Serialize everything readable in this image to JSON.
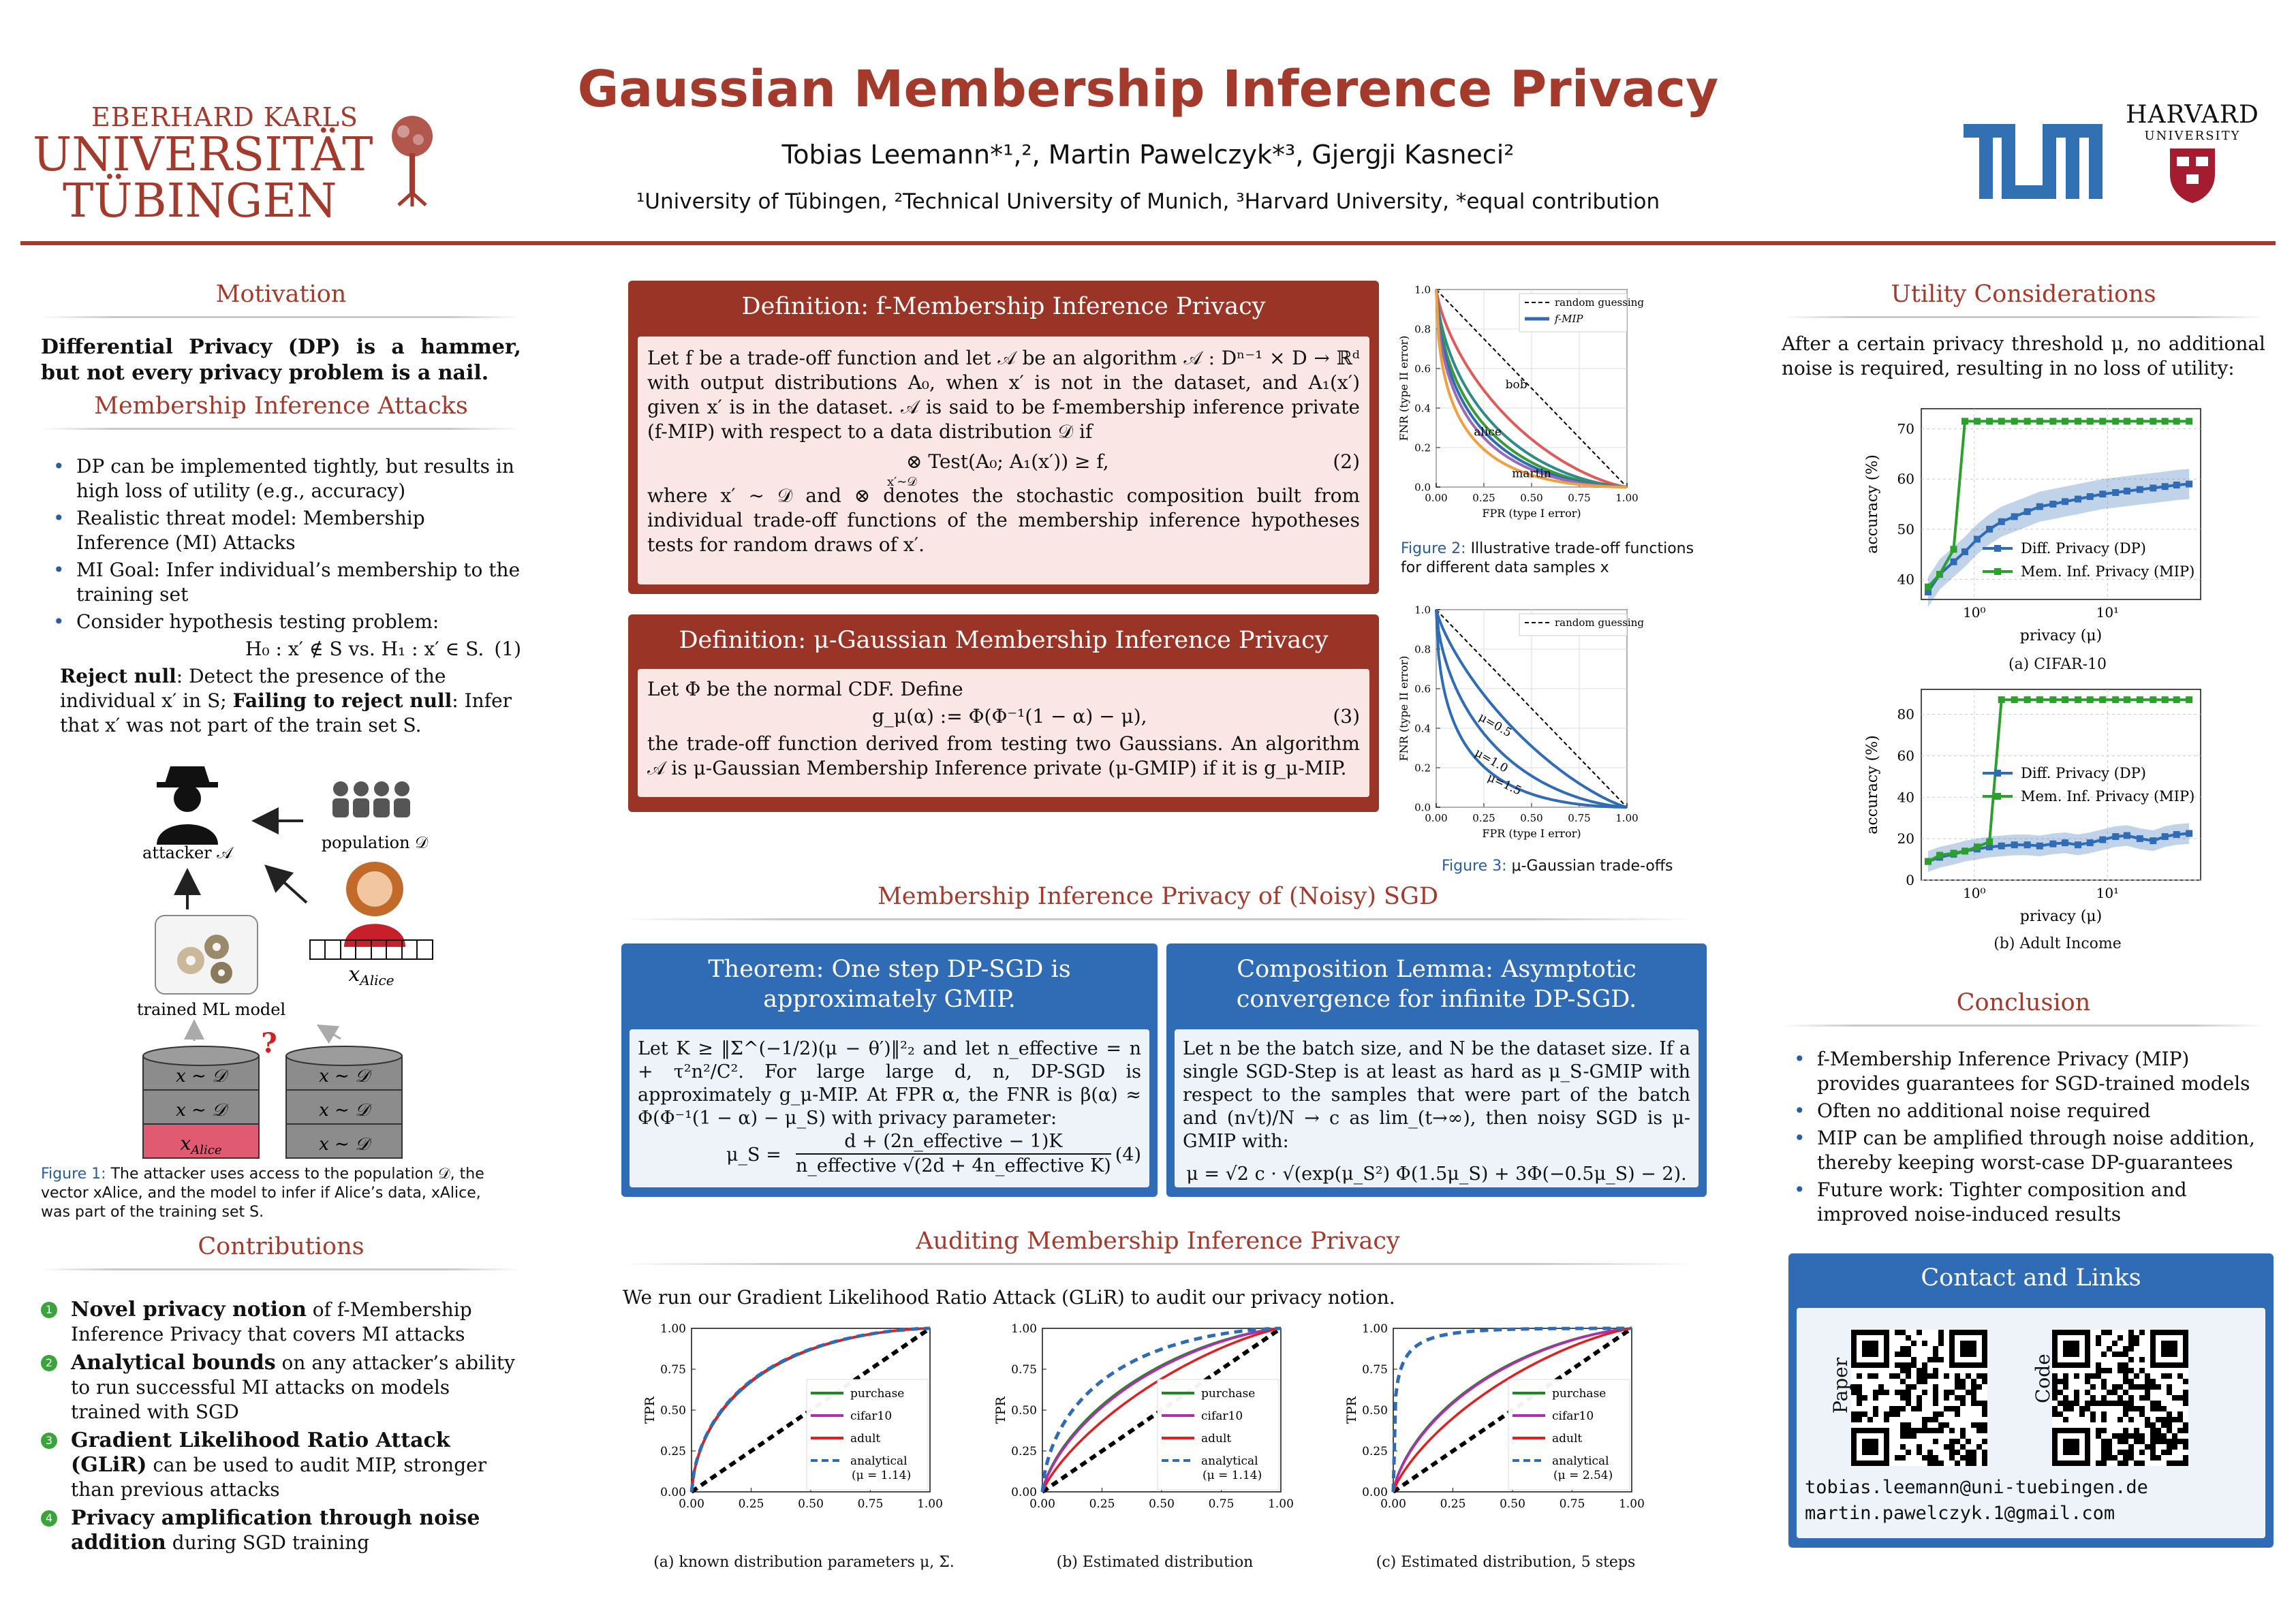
{
  "header": {
    "title": "Gaussian Membership Inference Privacy",
    "authors": "Tobias Leemann*¹,², Martin Pawelczyk*³, Gjergji Kasneci²",
    "affiliations": "¹University of Tübingen, ²Technical University of Munich, ³Harvard University, *equal contribution",
    "logo_tuebingen": [
      "EBERHARD KARLS",
      "UNIVERSITÄT",
      "TÜBINGEN"
    ],
    "logo_harvard": [
      "HARVARD",
      "UNIVERSITY"
    ],
    "logo_tum": "TUM"
  },
  "colors": {
    "accent": "#a33a2c",
    "blue": "#2f6cb5",
    "green": "#3aa43a"
  },
  "motivation": {
    "title": "Motivation",
    "text": "Differential Privacy (DP) is a hammer, but not every privacy problem is a nail."
  },
  "mia": {
    "title": "Membership Inference Attacks",
    "bullets": [
      "DP can be implemented tightly, but results in high loss of utility (e.g., accuracy)",
      "Realistic threat model: Membership Inference (MI) Attacks",
      "MI Goal: Infer individual’s membership to the training set",
      "Consider hypothesis testing problem:"
    ],
    "hypothesis": "H₀ : x′ ∉ S vs. H₁ : x′ ∈ S.",
    "eq_num": "(1)",
    "reject_bold": "Reject null",
    "reject_text": ": Detect the presence of the individual x′ in S; ",
    "fail_bold": "Failing to reject null",
    "fail_text": ": Infer that x′ was not part of the train set S."
  },
  "fig1": {
    "attacker": "attacker 𝒜",
    "population": "population 𝒟",
    "model": "trained ML model",
    "x_alice": "x",
    "x_alice_sub": "Alice",
    "db_row": "x ∼ 𝒟",
    "db_alice": "x",
    "question": "?",
    "caption_label": "Figure 1:",
    "caption": " The attacker uses access to the population 𝒟, the vector xAlice, and the model to infer if Alice’s data, xAlice, was part of the training set S."
  },
  "contributions": {
    "title": "Contributions",
    "items": [
      {
        "num": "1",
        "bold": "Novel privacy notion",
        "text": " of f-Membership Inference Privacy that covers MI attacks"
      },
      {
        "num": "2",
        "bold": "Analytical bounds",
        "text": " on any attacker’s ability to run successful MI attacks on models trained with SGD"
      },
      {
        "num": "3",
        "bold": "Gradient Likelihood Ratio Attack (GLiR)",
        "text": " can be used to audit MIP, stronger than previous attacks"
      },
      {
        "num": "4",
        "bold": "Privacy amplification through noise addition",
        "text": " during SGD training"
      }
    ]
  },
  "def1": {
    "title": "Definition: f-Membership Inference Privacy",
    "text1": "Let f be a trade-off function and let 𝒜 be an algorithm 𝒜 : Dⁿ⁻¹ × D → ℝᵈ with output distributions A₀, when x′ is not in the dataset, and A₁(x′) given x′ is in the dataset. 𝒜 is said to be f-membership inference private (f-MIP) with respect to a data distribution 𝒟 if",
    "equation": "⊗ Test(A₀; A₁(x′)) ≥ f,",
    "equation_sub": "x′∼𝒟",
    "eq_num": "(2)",
    "text2": "where x′ ∼ 𝒟 and ⊗ denotes the stochastic composition built from individual trade-off functions of the membership inference hypotheses tests for random draws of x′."
  },
  "def2": {
    "title": "Definition: μ-Gaussian Membership Inference Privacy",
    "text1": "Let Φ be the normal CDF. Define",
    "equation": "g_μ(α) := Φ(Φ⁻¹(1 − α) − μ),",
    "eq_num": "(3)",
    "text2": "the trade-off function derived from testing two Gaussians. An algorithm 𝒜 is μ-Gaussian Membership Inference private (μ-GMIP) if it is g_μ-MIP."
  },
  "sgd": {
    "title": "Membership Inference Privacy of (Noisy) SGD"
  },
  "theorem": {
    "title": "Theorem: One step DP-SGD is approximately GMIP.",
    "text1": "Let K ≥ ‖Σ^(−1/2)(μ − θ′)‖²₂ and let n_effective = n + τ²n²/C². For large large d, n, DP-SGD is approximately g_μ-MIP. At FPR α, the FNR is β(α) ≈ Φ(Φ⁻¹(1 − α) − μ_S) with privacy parameter:",
    "equation_lhs": "μ_S =",
    "equation_num": "d + (2n_effective − 1)K",
    "equation_den": "n_effective √(2d + 4n_effective K)",
    "eq_num": "(4)"
  },
  "lemma": {
    "title": "Composition Lemma: Asymptotic convergence for infinite DP-SGD.",
    "text1": "Let n be the batch size, and N be the dataset size. If a single SGD-Step is at least as hard as μ_S-GMIP with respect to the samples that were part of the batch and (n√t)/N → c as lim_(t→∞), then noisy SGD is μ-GMIP with:",
    "equation": "μ = √2 c · √(exp(μ_S²) Φ(1.5μ_S) + 3Φ(−0.5μ_S) − 2)."
  },
  "audit": {
    "title": "Auditing Membership Inference Privacy",
    "text": "We run our Gradient Likelihood Ratio Attack (GLiR) to audit our privacy notion."
  },
  "utility": {
    "title": "Utility Considerations",
    "text": "After a certain privacy threshold μ, no additional noise is required, resulting in no loss of utility:"
  },
  "conclusion": {
    "title": "Conclusion",
    "bullets": [
      "f-Membership Inference Privacy (MIP) provides guarantees for SGD-trained models",
      "Often no additional noise required",
      "MIP can be amplified through noise addition, thereby keeping worst-case DP-guarantees",
      "Future work: Tighter composition and improved noise-induced results"
    ]
  },
  "contact": {
    "title": "Contact and Links",
    "qr_labels": [
      "Paper",
      "Code"
    ],
    "emails": [
      "tobias.leemann@uni-tuebingen.de",
      "martin.pawelczyk.1@gmail.com"
    ]
  },
  "chart_data": [
    {
      "id": "fig2",
      "type": "line",
      "caption_label": "Figure 2:",
      "caption": " Illustrative trade-off functions for different data samples x",
      "xlabel": "FPR (type I error)",
      "ylabel": "FNR (type II error)",
      "xlim": [
        0,
        1
      ],
      "ylim": [
        0,
        1
      ],
      "xticks": [
        "0.00",
        "0.25",
        "0.50",
        "0.75",
        "1.00"
      ],
      "yticks": [
        "0.0",
        "0.2",
        "0.4",
        "0.6",
        "0.8",
        "1.0"
      ],
      "legend": [
        "random guessing",
        "f-MIP"
      ],
      "legend_position": "top-right",
      "annotations": [
        "bob",
        "alice",
        "martin"
      ],
      "series": [
        {
          "name": "random guessing",
          "color": "#000000",
          "dashed": true,
          "mu": 0
        },
        {
          "color": "#e05a5a",
          "mu": 0.7
        },
        {
          "color": "#2f8a8a",
          "mu": 1.0
        },
        {
          "color": "#3a9a3a",
          "mu": 1.15
        },
        {
          "color": "#2f6cb5",
          "mu": 1.25
        },
        {
          "color": "#9a6ab5",
          "mu": 1.35
        },
        {
          "color": "#f0a040",
          "mu": 1.55
        }
      ],
      "grid": true
    },
    {
      "id": "fig3",
      "type": "line",
      "caption_label": "Figure 3:",
      "caption": " μ-Gaussian trade-offs",
      "xlabel": "FPR (type I error)",
      "ylabel": "FNR (type II error)",
      "xlim": [
        0,
        1
      ],
      "ylim": [
        0,
        1
      ],
      "xticks": [
        "0.00",
        "0.25",
        "0.50",
        "0.75",
        "1.00"
      ],
      "yticks": [
        "0.0",
        "0.2",
        "0.4",
        "0.6",
        "0.8",
        "1.0"
      ],
      "legend": [
        "random guessing"
      ],
      "legend_position": "top-right",
      "annotations": [
        "μ=0.5",
        "μ=1.0",
        "μ=1.5"
      ],
      "series": [
        {
          "name": "random guessing",
          "color": "#000000",
          "dashed": true,
          "mu": 0
        },
        {
          "name": "μ=0.5",
          "color": "#2f6cb5",
          "mu": 0.5
        },
        {
          "name": "μ=1.0",
          "color": "#2f6cb5",
          "mu": 1.0
        },
        {
          "name": "μ=1.5",
          "color": "#2f6cb5",
          "mu": 1.5
        }
      ],
      "grid": true
    },
    {
      "id": "roc_a",
      "type": "line",
      "caption": "(a) known distribution parameters μ, Σ.",
      "xlabel": "FPR",
      "ylabel": "TPR",
      "xlim": [
        0,
        1
      ],
      "ylim": [
        0,
        1
      ],
      "xticks": [
        "0.00",
        "0.25",
        "0.50",
        "0.75",
        "1.00"
      ],
      "yticks": [
        "0.00",
        "0.25",
        "0.50",
        "0.75",
        "1.00"
      ],
      "legend": [
        "purchase",
        "cifar10",
        "adult",
        "analytical",
        "(μ = 1.14)"
      ],
      "legend_position": "bottom-right",
      "series": [
        {
          "name": "purchase",
          "color": "#1a8a1a",
          "mu": 1.12
        },
        {
          "name": "cifar10",
          "color": "#b52ab5",
          "mu": 1.13
        },
        {
          "name": "adult",
          "color": "#e02020",
          "mu": 1.14
        },
        {
          "name": "analytical",
          "color": "#2f6cb5",
          "dashed": true,
          "mu": 1.14
        },
        {
          "name": "random",
          "color": "#000000",
          "dashed": true,
          "mu": 0
        }
      ]
    },
    {
      "id": "roc_b",
      "type": "line",
      "caption": "(b) Estimated distribution",
      "xlabel": "FPR",
      "ylabel": "TPR",
      "xlim": [
        0,
        1
      ],
      "ylim": [
        0,
        1
      ],
      "xticks": [
        "0.00",
        "0.25",
        "0.50",
        "0.75",
        "1.00"
      ],
      "yticks": [
        "0.00",
        "0.25",
        "0.50",
        "0.75",
        "1.00"
      ],
      "legend": [
        "purchase",
        "cifar10",
        "adult",
        "analytical",
        "(μ = 1.14)"
      ],
      "legend_position": "bottom-right",
      "series": [
        {
          "name": "purchase",
          "color": "#1a8a1a",
          "mu": 0.75
        },
        {
          "name": "cifar10",
          "color": "#b52ab5",
          "mu": 0.72
        },
        {
          "name": "adult",
          "color": "#e02020",
          "mu": 0.5
        },
        {
          "name": "analytical",
          "color": "#2f6cb5",
          "dashed": true,
          "mu": 1.14
        },
        {
          "name": "random",
          "color": "#000000",
          "dashed": true,
          "mu": 0
        }
      ]
    },
    {
      "id": "roc_c",
      "type": "line",
      "caption": "(c) Estimated distribution, 5 steps",
      "xlabel": "FPR",
      "ylabel": "TPR",
      "xlim": [
        0,
        1
      ],
      "ylim": [
        0,
        1
      ],
      "xticks": [
        "0.00",
        "0.25",
        "0.50",
        "0.75",
        "1.00"
      ],
      "yticks": [
        "0.00",
        "0.25",
        "0.50",
        "0.75",
        "1.00"
      ],
      "legend": [
        "purchase",
        "cifar10",
        "adult",
        "analytical",
        "(μ = 2.54)"
      ],
      "legend_position": "bottom-right",
      "series": [
        {
          "name": "purchase",
          "color": "#1a8a1a",
          "mu": 0.8
        },
        {
          "name": "cifar10",
          "color": "#b52ab5",
          "mu": 0.78
        },
        {
          "name": "adult",
          "color": "#e02020",
          "mu": 0.55
        },
        {
          "name": "analytical",
          "color": "#2f6cb5",
          "dashed": true,
          "mu": 2.54
        },
        {
          "name": "random",
          "color": "#000000",
          "dashed": true,
          "mu": 0
        }
      ]
    },
    {
      "id": "util_a",
      "type": "line",
      "caption": "(a) CIFAR-10",
      "xlabel": "privacy (μ)",
      "ylabel": "accuracy (%)",
      "xscale": "log",
      "xlim": [
        0.4,
        50
      ],
      "ylim": [
        36,
        74
      ],
      "xticks": [
        "10⁰",
        "10¹"
      ],
      "yticks": [
        40,
        50,
        60,
        70
      ],
      "legend": [
        "Diff. Privacy (DP)",
        "Mem. Inf. Privacy (MIP)"
      ],
      "legend_position": "lower-middle",
      "series": [
        {
          "name": "Diff. Privacy (DP)",
          "color": "#2f6cb5",
          "x": [
            0.45,
            0.55,
            0.7,
            0.85,
            1.05,
            1.3,
            1.6,
            2.0,
            2.5,
            3.1,
            3.9,
            4.8,
            6,
            7.4,
            9.2,
            11.5,
            14,
            17.5,
            22,
            27,
            33,
            41
          ],
          "y": [
            37.5,
            41,
            43.5,
            45.5,
            48,
            50,
            51.5,
            52.5,
            53.5,
            54.5,
            55,
            55.5,
            56,
            56.5,
            57,
            57.3,
            57.6,
            57.9,
            58.2,
            58.5,
            58.8,
            59
          ],
          "band": 3
        },
        {
          "name": "Mem. Inf. Privacy (MIP)",
          "color": "#2ca02c",
          "x": [
            0.45,
            0.55,
            0.7,
            0.85,
            1.05,
            1.3,
            1.6,
            2.0,
            2.5,
            3.1,
            3.9,
            4.8,
            6,
            7.4,
            9.2,
            11.5,
            14,
            17.5,
            22,
            27,
            33,
            41
          ],
          "y": [
            38.5,
            41,
            46,
            71.5,
            71.5,
            71.5,
            71.5,
            71.5,
            71.5,
            71.5,
            71.5,
            71.5,
            71.5,
            71.5,
            71.5,
            71.5,
            71.5,
            71.5,
            71.5,
            71.5,
            71.5,
            71.5
          ]
        }
      ],
      "grid": true
    },
    {
      "id": "util_b",
      "type": "line",
      "caption": "(b) Adult Income",
      "xlabel": "privacy (μ)",
      "ylabel": "accuracy (%)",
      "xscale": "log",
      "xlim": [
        0.4,
        50
      ],
      "ylim": [
        0,
        92
      ],
      "xticks": [
        "10⁰",
        "10¹"
      ],
      "yticks": [
        0,
        20,
        40,
        60,
        80
      ],
      "legend": [
        "Diff. Privacy (DP)",
        "Mem. Inf. Privacy (MIP)"
      ],
      "legend_position": "middle",
      "series": [
        {
          "name": "Diff. Privacy (DP)",
          "color": "#2f6cb5",
          "x": [
            0.45,
            0.55,
            0.7,
            0.85,
            1.05,
            1.3,
            1.6,
            2.0,
            2.5,
            3.1,
            3.9,
            4.8,
            6,
            7.4,
            9.2,
            11.5,
            14,
            17.5,
            22,
            27,
            33,
            41
          ],
          "y": [
            9,
            11,
            12.5,
            14,
            15,
            16,
            16.5,
            17,
            17,
            16.5,
            17.5,
            18,
            17,
            18,
            19.5,
            21,
            21.5,
            20,
            19,
            21,
            22,
            22.5
          ],
          "band": 5
        },
        {
          "name": "Mem. Inf. Privacy (MIP)",
          "color": "#2ca02c",
          "x": [
            0.45,
            0.55,
            0.7,
            0.85,
            1.05,
            1.3,
            1.6,
            2.0,
            2.5,
            3.1,
            3.9,
            4.8,
            6,
            7.4,
            9.2,
            11.5,
            14,
            17.5,
            22,
            27,
            33,
            41
          ],
          "y": [
            9,
            12,
            13,
            14,
            16,
            18.5,
            87,
            87,
            87,
            87,
            87,
            87,
            87,
            87,
            87,
            87,
            87,
            87,
            87,
            87,
            87,
            87
          ]
        }
      ],
      "grid": true
    }
  ]
}
